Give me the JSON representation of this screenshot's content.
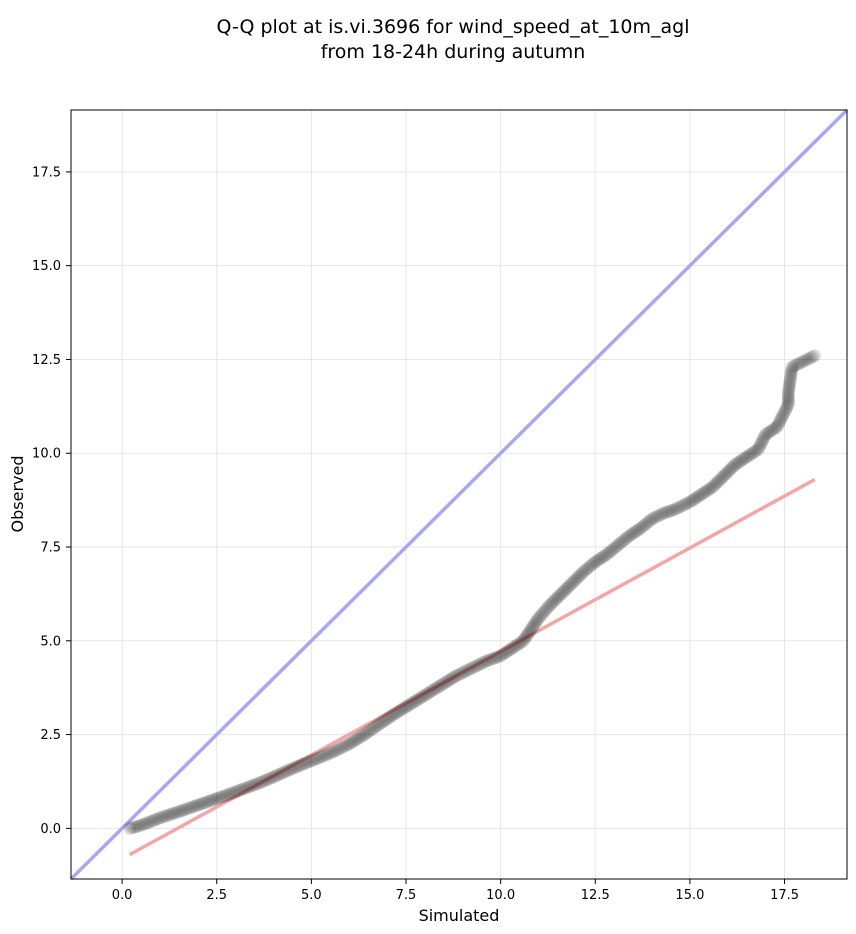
{
  "chart_data": {
    "type": "scatter",
    "title_lines": [
      "Q-Q plot at is.vi.3696 for wind_speed_at_10m_agl",
      "from 18-24h during autumn"
    ],
    "xlabel": "Simulated",
    "ylabel": "Observed",
    "xlim": [
      -1.35,
      19.15
    ],
    "ylim": [
      -1.35,
      19.15
    ],
    "xticks": [
      0.0,
      2.5,
      5.0,
      7.5,
      10.0,
      12.5,
      15.0,
      17.5
    ],
    "xtick_labels": [
      "0.0",
      "2.5",
      "5.0",
      "7.5",
      "10.0",
      "12.5",
      "15.0",
      "17.5"
    ],
    "yticks": [
      0.0,
      2.5,
      5.0,
      7.5,
      10.0,
      12.5,
      15.0,
      17.5
    ],
    "ytick_labels": [
      "0.0",
      "2.5",
      "5.0",
      "7.5",
      "10.0",
      "12.5",
      "15.0",
      "17.5"
    ],
    "grid": true,
    "reference_line": {
      "slope": 1,
      "intercept": 0,
      "color": "#a8a8f0"
    },
    "fit_line": {
      "x": [
        0.2,
        18.3
      ],
      "y": [
        -0.7,
        9.3
      ],
      "color": "#f4a6a6"
    },
    "point_color": "#000000",
    "points": {
      "x": [
        0.2,
        0.4,
        0.6,
        0.8,
        1.0,
        1.3,
        1.6,
        2.0,
        2.4,
        2.8,
        3.2,
        3.6,
        4.0,
        4.4,
        4.8,
        5.2,
        5.6,
        6.0,
        6.4,
        6.8,
        7.2,
        7.6,
        8.0,
        8.4,
        8.8,
        9.2,
        9.6,
        10.0,
        10.3,
        10.6,
        10.8,
        11.0,
        11.3,
        11.6,
        11.9,
        12.2,
        12.5,
        12.8,
        13.1,
        13.4,
        13.7,
        14.0,
        14.3,
        14.6,
        15.0,
        15.3,
        15.6,
        15.9,
        16.2,
        16.5,
        16.8,
        17.0,
        17.3,
        17.6,
        17.6,
        17.7,
        18.3
      ],
      "y": [
        0.0,
        0.05,
        0.12,
        0.2,
        0.28,
        0.38,
        0.48,
        0.62,
        0.76,
        0.9,
        1.05,
        1.2,
        1.37,
        1.55,
        1.72,
        1.88,
        2.05,
        2.25,
        2.5,
        2.78,
        3.05,
        3.3,
        3.55,
        3.8,
        4.05,
        4.25,
        4.45,
        4.6,
        4.8,
        5.0,
        5.3,
        5.6,
        5.95,
        6.25,
        6.55,
        6.85,
        7.1,
        7.3,
        7.55,
        7.8,
        8.0,
        8.25,
        8.4,
        8.5,
        8.7,
        8.9,
        9.1,
        9.4,
        9.7,
        9.9,
        10.1,
        10.5,
        10.7,
        11.3,
        11.6,
        12.3,
        12.6
      ]
    }
  }
}
